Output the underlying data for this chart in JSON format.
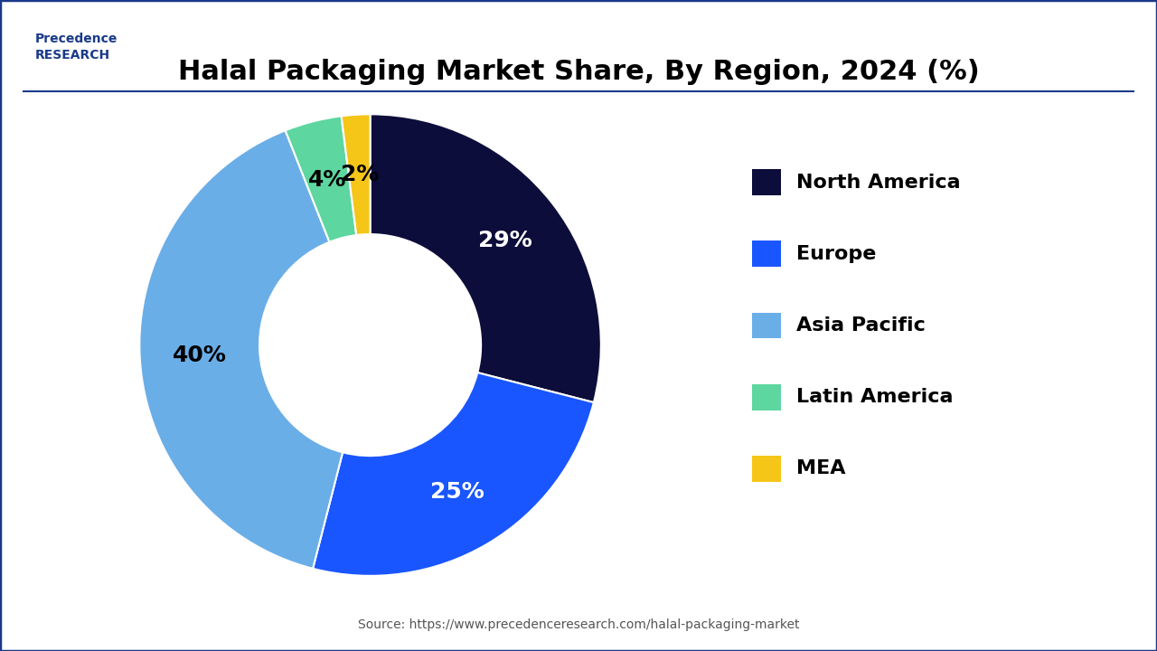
{
  "title": "Halal Packaging Market Share, By Region, 2024 (%)",
  "labels": [
    "North America",
    "Europe",
    "Asia Pacific",
    "Latin America",
    "MEA"
  ],
  "values": [
    29,
    25,
    40,
    4,
    2
  ],
  "colors": [
    "#0d0d3b",
    "#1a56ff",
    "#6aaee8",
    "#5dd6a0",
    "#f5c518"
  ],
  "pct_labels": [
    "29%",
    "25%",
    "40%",
    "4%",
    "2%"
  ],
  "pct_label_colors": [
    "white",
    "white",
    "black",
    "black",
    "black"
  ],
  "source_text": "Source: https://www.precedenceresearch.com/halal-packaging-market",
  "title_fontsize": 22,
  "legend_fontsize": 16,
  "pct_fontsize": 18,
  "background_color": "#ffffff",
  "border_color": "#1a3a8a"
}
